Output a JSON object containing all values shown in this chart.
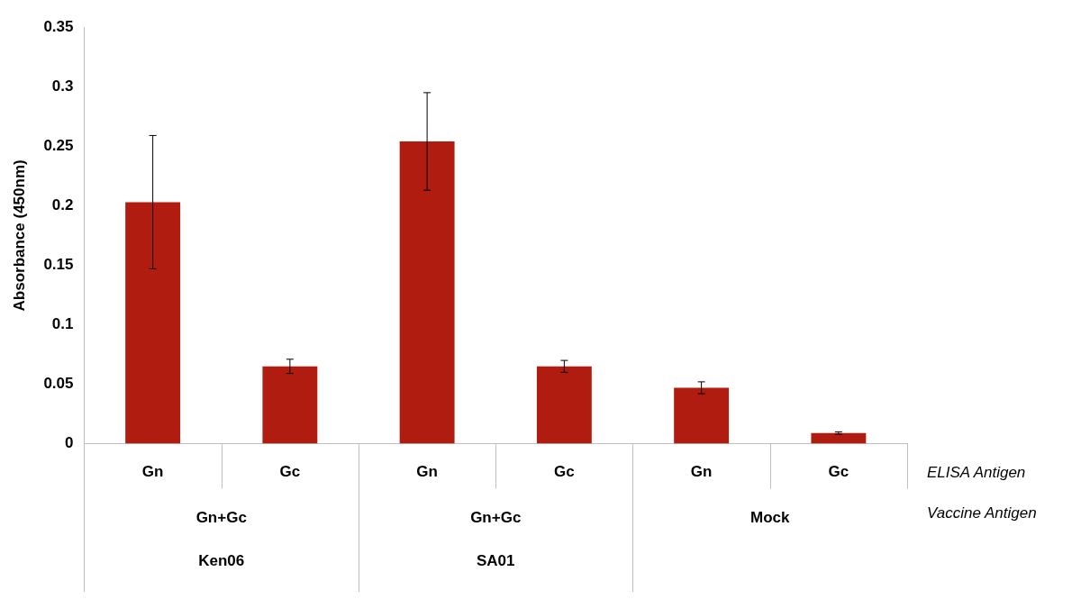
{
  "chart_data": {
    "type": "bar",
    "ylabel": "Absorbance (450nm)",
    "categories": [
      "Gn",
      "Gc",
      "Gn",
      "Gc",
      "Gn",
      "Gc"
    ],
    "values": [
      0.203,
      0.065,
      0.254,
      0.065,
      0.047,
      0.009
    ],
    "errors": [
      0.056,
      0.006,
      0.041,
      0.005,
      0.005,
      0.001
    ],
    "color": "#b01c10",
    "ylim": [
      0,
      0.35
    ],
    "yticks": [
      0,
      0.05,
      0.1,
      0.15,
      0.2,
      0.25,
      0.3,
      0.35
    ],
    "grid": false,
    "legend": false,
    "annotations": [
      "ELISA Antigen",
      "Vaccine Antigen",
      "Gn+Gc",
      "Gn+Gc",
      "Mock",
      "Ken06",
      "SA01"
    ]
  }
}
